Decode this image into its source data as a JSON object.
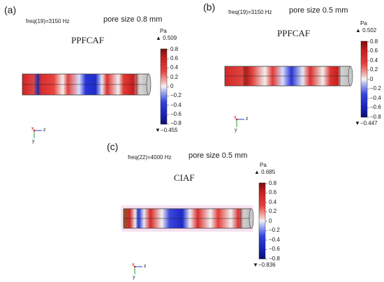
{
  "panels": [
    {
      "letter": "(a)",
      "freq": "freq(19)=3150 Hz",
      "pore": "pore size 0.8 mm",
      "model": "PPFCAF",
      "unit": "Pa",
      "max_label": "▲ 0.509",
      "min_label": "▼−0.455",
      "ticks": [
        "0.8",
        "0.6",
        "0.4",
        "0.2",
        "0",
        "−0.2",
        "−0.4",
        "−0.6",
        "−0.8"
      ]
    },
    {
      "letter": "(b)",
      "freq": "freq(19)=3150 Hz",
      "pore": "pore size 0.5 mm",
      "model": "PPFCAF",
      "unit": "Pa",
      "max_label": "▲ 0.502",
      "min_label": "▼−0.447",
      "ticks": [
        "0.8",
        "0.6",
        "0.4",
        "0.2",
        "0",
        "−0.2",
        "−0.4",
        "−0.6",
        "−0.8"
      ]
    },
    {
      "letter": "(c)",
      "freq": "freq(22)=4000 Hz",
      "pore": "pore size 0.5 mm",
      "model": "CIAF",
      "unit": "Pa",
      "max_label": "▲ 0.685",
      "min_label": "▼−0.836",
      "ticks": [
        "0.8",
        "0.6",
        "0.4",
        "0.2",
        "0",
        "−0.2",
        "−0.4",
        "−0.6",
        "−0.8"
      ]
    }
  ],
  "axis_labels": {
    "x": "x",
    "y": "y",
    "z": "z"
  },
  "colors": {
    "red": "#d7191c",
    "blue": "#1f2fd6",
    "white": "#f3f3f3"
  }
}
